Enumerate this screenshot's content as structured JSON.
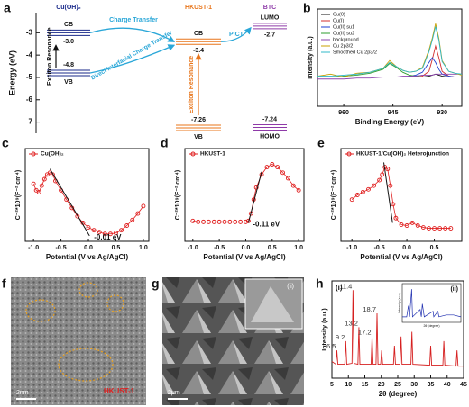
{
  "panel_letters": [
    "a",
    "b",
    "c",
    "d",
    "e",
    "f",
    "g",
    "h"
  ],
  "chart_data": [
    {
      "type": "energy",
      "ylabel": "Energy (eV)",
      "ylim": [
        -2.1,
        -7.5
      ],
      "yticks": [
        -3,
        -4,
        -5,
        -6,
        -7
      ],
      "materials": [
        {
          "name": "Cu(OH)₂",
          "color": "#1a2a8a",
          "level_names": [
            "CB",
            "VB"
          ],
          "values": [
            -3.0,
            -4.8
          ],
          "value_labels": [
            "-3.0",
            "-4.8"
          ]
        },
        {
          "name": "HKUST-1",
          "color": "#e8751a",
          "level_names": [
            "CB",
            "VB"
          ],
          "values": [
            -3.4,
            -7.26
          ],
          "value_labels": [
            "-3.4",
            "-7.26"
          ]
        },
        {
          "name": "BTC",
          "color": "#8e3aa8",
          "level_names": [
            "LUMO",
            "HOMO"
          ],
          "values": [
            -2.7,
            -7.24
          ],
          "value_labels": [
            "-2.7",
            "-7.24"
          ]
        }
      ],
      "annotations": [
        "Charge Transfer",
        "Direct Interfacial Charge Transfer",
        "PICT",
        "Exciton Resonance",
        "Exciton Resonance"
      ]
    },
    {
      "type": "line",
      "xlabel": "Binding Energy (eV)",
      "ylabel": "Intensity (a.u.)",
      "legend": "upper left",
      "xlim": [
        968,
        924
      ],
      "xticks": [
        960,
        945,
        930
      ],
      "ylim": [
        0,
        1
      ],
      "x": [
        968,
        964,
        960,
        956,
        952,
        948,
        946,
        944,
        942,
        940,
        938,
        936,
        934,
        933,
        932,
        931,
        930,
        928,
        926,
        924
      ],
      "series": [
        {
          "name": "Cu(0)",
          "color": "#111111",
          "values": [
            0.3,
            0.3,
            0.3,
            0.3,
            0.3,
            0.3,
            0.3,
            0.3,
            0.3,
            0.3,
            0.3,
            0.3,
            0.31,
            0.32,
            0.33,
            0.32,
            0.31,
            0.3,
            0.3,
            0.3
          ]
        },
        {
          "name": "Cu(I)",
          "color": "#d32f2f",
          "values": [
            0.3,
            0.3,
            0.3,
            0.3,
            0.3,
            0.3,
            0.3,
            0.3,
            0.3,
            0.3,
            0.3,
            0.31,
            0.36,
            0.48,
            0.62,
            0.5,
            0.36,
            0.31,
            0.3,
            0.3
          ]
        },
        {
          "name": "Cu(II) su1",
          "color": "#1e3fd0",
          "values": [
            0.3,
            0.3,
            0.3,
            0.3,
            0.3,
            0.3,
            0.3,
            0.3,
            0.3,
            0.31,
            0.32,
            0.35,
            0.45,
            0.5,
            0.45,
            0.38,
            0.33,
            0.31,
            0.3,
            0.3
          ]
        },
        {
          "name": "Cu(II) su2",
          "color": "#2e9e2e",
          "values": [
            0.3,
            0.3,
            0.31,
            0.32,
            0.34,
            0.38,
            0.44,
            0.4,
            0.35,
            0.32,
            0.31,
            0.3,
            0.3,
            0.3,
            0.3,
            0.3,
            0.3,
            0.3,
            0.3,
            0.3
          ]
        },
        {
          "name": "background",
          "color": "#8e44ad",
          "values": [
            0.28,
            0.28,
            0.28,
            0.29,
            0.29,
            0.3,
            0.3,
            0.3,
            0.31,
            0.31,
            0.31,
            0.32,
            0.32,
            0.32,
            0.33,
            0.33,
            0.33,
            0.33,
            0.33,
            0.33
          ]
        },
        {
          "name": "Cu 2p3/2",
          "color": "#c8a000",
          "values": [
            0.31,
            0.33,
            0.3,
            0.34,
            0.35,
            0.39,
            0.47,
            0.41,
            0.37,
            0.35,
            0.36,
            0.4,
            0.58,
            0.7,
            0.85,
            0.7,
            0.47,
            0.36,
            0.34,
            0.32
          ]
        },
        {
          "name": "Smoothed Cu 2p3/2",
          "color": "#30b8c8",
          "values": [
            0.31,
            0.31,
            0.32,
            0.33,
            0.35,
            0.39,
            0.45,
            0.41,
            0.37,
            0.35,
            0.36,
            0.39,
            0.56,
            0.68,
            0.82,
            0.68,
            0.46,
            0.36,
            0.34,
            0.33
          ]
        }
      ]
    },
    {
      "type": "line",
      "markers": true,
      "legend": "upper left",
      "xlabel": "Potential (V vs Ag/AgCl)",
      "ylabel": "C⁻²*10⁹(F⁻² cm⁴)",
      "xlim": [
        -1.15,
        1.1
      ],
      "ylim": [
        0,
        1
      ],
      "xticks": [
        {
          "value": -1.0,
          "label": "-1.0"
        },
        {
          "value": -0.5,
          "label": "-0.5"
        },
        {
          "value": 0.0,
          "label": "0.0"
        },
        {
          "value": 0.5,
          "label": "0.5"
        },
        {
          "value": 1.0,
          "label": "1.0"
        }
      ],
      "x": [
        -1.0,
        -0.95,
        -0.9,
        -0.85,
        -0.8,
        -0.75,
        -0.7,
        -0.65,
        -0.6,
        -0.5,
        -0.4,
        -0.3,
        -0.2,
        -0.1,
        0.0,
        0.1,
        0.2,
        0.3,
        0.4,
        0.5,
        0.6,
        0.7,
        0.8,
        0.9,
        1.0
      ],
      "series": [
        {
          "name": "Cu(OH)₂",
          "color": "#e02020",
          "values": [
            0.62,
            0.55,
            0.53,
            0.6,
            0.67,
            0.72,
            0.74,
            0.72,
            0.65,
            0.55,
            0.45,
            0.36,
            0.27,
            0.2,
            0.15,
            0.12,
            0.1,
            0.08,
            0.08,
            0.09,
            0.12,
            0.17,
            0.23,
            0.3,
            0.38
          ]
        }
      ],
      "fit": {
        "x": [
          -0.7,
          0.02
        ],
        "values": [
          0.78,
          0.06
        ]
      },
      "annotation": "-0.01 eV"
    },
    {
      "type": "line",
      "markers": true,
      "legend": "upper left",
      "xlabel": "Potential (V vs Ag/AgCl)",
      "ylabel": "C⁻²*10⁹(F⁻² cm⁴)",
      "xlim": [
        -1.15,
        1.1
      ],
      "ylim": [
        0,
        1
      ],
      "xticks": [
        {
          "value": -1.0,
          "label": "-1.0"
        },
        {
          "value": -0.5,
          "label": "-0.5"
        },
        {
          "value": 0.0,
          "label": "0.0"
        },
        {
          "value": 0.5,
          "label": "0.5"
        },
        {
          "value": 1.0,
          "label": "1.0"
        }
      ],
      "x": [
        -1.0,
        -0.9,
        -0.8,
        -0.7,
        -0.6,
        -0.5,
        -0.4,
        -0.3,
        -0.2,
        -0.1,
        0.0,
        0.05,
        0.1,
        0.15,
        0.2,
        0.3,
        0.4,
        0.5,
        0.6,
        0.7,
        0.8,
        0.9,
        1.0
      ],
      "series": [
        {
          "name": "HKUST-1",
          "color": "#e02020",
          "values": [
            0.22,
            0.21,
            0.21,
            0.21,
            0.21,
            0.21,
            0.21,
            0.21,
            0.21,
            0.21,
            0.21,
            0.22,
            0.3,
            0.45,
            0.58,
            0.72,
            0.8,
            0.83,
            0.8,
            0.74,
            0.68,
            0.6,
            0.55
          ]
        }
      ],
      "fit": {
        "x": [
          0.05,
          0.3
        ],
        "values": [
          0.2,
          0.75
        ]
      },
      "annotation": "-0.11 eV"
    },
    {
      "type": "line",
      "markers": true,
      "legend": "upper left",
      "xlabel": "Potential (V vs Ag/AgCl)",
      "ylabel": "C⁻²*10⁹(F⁻² cm⁴)",
      "xlim": [
        -1.2,
        1.0
      ],
      "ylim": [
        0,
        1
      ],
      "xticks": [
        {
          "value": -1.0,
          "label": "-1.0"
        },
        {
          "value": -0.5,
          "label": "-0.5"
        },
        {
          "value": 0.0,
          "label": "0.0"
        },
        {
          "value": 0.5,
          "label": "0.5"
        }
      ],
      "x": [
        -1.0,
        -0.9,
        -0.8,
        -0.7,
        -0.6,
        -0.5,
        -0.45,
        -0.4,
        -0.35,
        -0.3,
        -0.25,
        -0.2,
        -0.1,
        0.0,
        0.1,
        0.2,
        0.3,
        0.4,
        0.5,
        0.6,
        0.7,
        0.8
      ],
      "series": [
        {
          "name": "HKUST-1/Cu(OH)₂ Heterojunction",
          "color": "#e02020",
          "values": [
            0.45,
            0.5,
            0.53,
            0.56,
            0.6,
            0.66,
            0.72,
            0.8,
            0.78,
            0.6,
            0.4,
            0.25,
            0.18,
            0.17,
            0.2,
            0.17,
            0.15,
            0.14,
            0.14,
            0.14,
            0.14,
            0.14
          ]
        }
      ],
      "fit": {
        "x": [
          -0.42,
          -0.26
        ],
        "values": [
          0.85,
          0.2
        ]
      }
    },
    {
      "type": "line",
      "xlabel": "2θ (degree)",
      "ylabel": "Intensity (a.u.)",
      "panel_label": "(i)",
      "xlim": [
        5,
        45
      ],
      "xticks": [
        5,
        10,
        15,
        20,
        25,
        30,
        35,
        40,
        45
      ],
      "ylim": [
        0,
        1.05
      ],
      "x": [
        5,
        6.2,
        6.5,
        6.8,
        8.9,
        9.2,
        9.5,
        11.1,
        11.4,
        11.7,
        12.9,
        13.2,
        13.5,
        16.9,
        17.2,
        17.5,
        18.4,
        18.7,
        19.0,
        19.8,
        20.1,
        20.4,
        23.7,
        24.0,
        24.3,
        25.7,
        26.0,
        26.3,
        29.0,
        29.3,
        29.6,
        34.7,
        35.0,
        35.3,
        38.7,
        39.0,
        39.3,
        42.7,
        43.0,
        43.3,
        45
      ],
      "series": [
        {
          "color": "#d62020",
          "values": [
            0.18,
            0.15,
            0.3,
            0.15,
            0.15,
            0.4,
            0.15,
            0.16,
            0.95,
            0.16,
            0.15,
            0.55,
            0.15,
            0.15,
            0.45,
            0.15,
            0.15,
            0.7,
            0.15,
            0.15,
            0.3,
            0.15,
            0.15,
            0.35,
            0.15,
            0.15,
            0.45,
            0.15,
            0.15,
            0.5,
            0.15,
            0.14,
            0.35,
            0.14,
            0.14,
            0.4,
            0.14,
            0.13,
            0.3,
            0.13,
            0.13
          ]
        }
      ],
      "peaks": [
        6.5,
        9.2,
        11.4,
        13.2,
        17.2,
        18.7
      ],
      "inset": {
        "label": "(ii)",
        "xlabel": "2θ (degree)",
        "ylabel": "Intensity (a.u.)",
        "color": "#1f2fb0",
        "x": [
          5,
          8,
          9.2,
          10,
          11.4,
          12,
          17.2,
          18,
          18.7,
          20,
          26,
          26.5,
          29.3,
          30,
          35,
          40,
          45
        ],
        "values": [
          0.15,
          0.15,
          0.45,
          0.15,
          0.9,
          0.15,
          0.35,
          0.15,
          0.5,
          0.15,
          0.3,
          0.15,
          0.3,
          0.15,
          0.2,
          0.2,
          0.15
        ]
      }
    }
  ],
  "images": {
    "f": {
      "scale": "2nm",
      "label": "HKUST-1"
    },
    "g": {
      "scale": "2μm",
      "inset": "(ii)"
    }
  }
}
